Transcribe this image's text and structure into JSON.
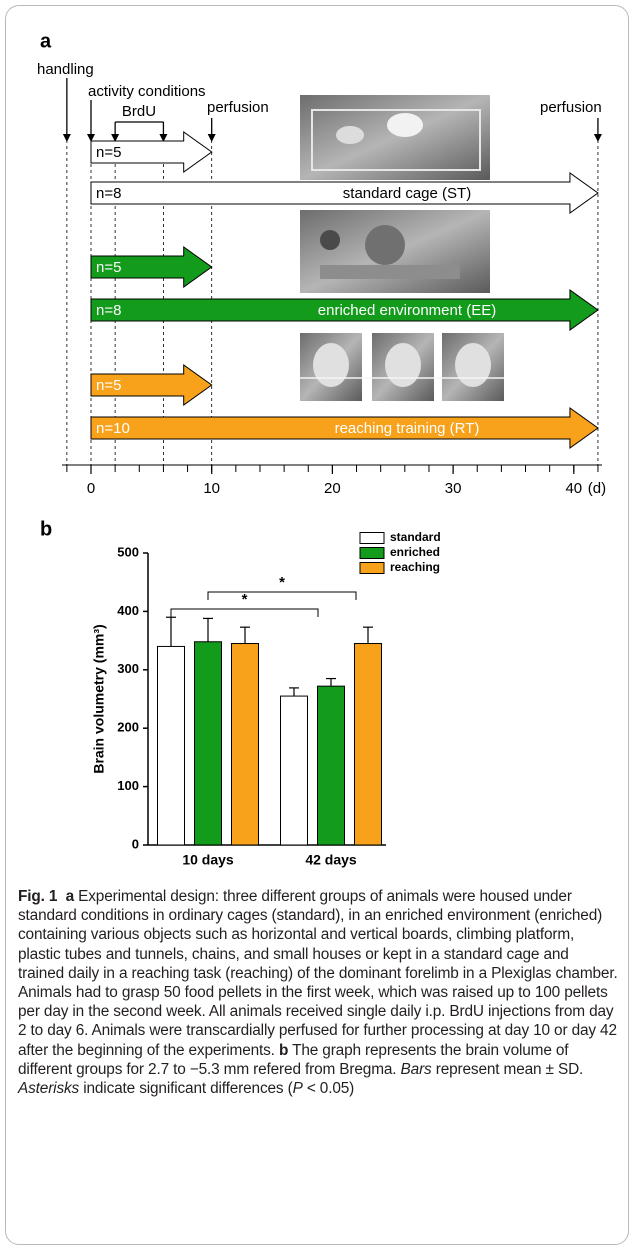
{
  "panel_a": {
    "label": "a",
    "events": [
      "handling",
      "activity conditions",
      "BrdU",
      "perfusion",
      "perfusion"
    ],
    "groups": [
      {
        "short_n": "n=5",
        "long_n": "n=8",
        "name": "standard cage (ST)",
        "color": "#ffffff"
      },
      {
        "short_n": "n=5",
        "long_n": "n=8",
        "name": "enriched environment (EE)",
        "color": "#139b1b"
      },
      {
        "short_n": "n=5",
        "long_n": "n=10",
        "name": "reaching training (RT)",
        "color": "#f8a21b"
      }
    ],
    "axis_ticks": [
      0,
      10,
      20,
      30,
      40
    ],
    "axis_unit": "(d)"
  },
  "panel_b_label": "b",
  "chart_data": {
    "type": "bar",
    "y_label": "Brain volumetry (mm³)",
    "categories": [
      "10 days",
      "42 days"
    ],
    "series": [
      {
        "name": "standard",
        "color": "#ffffff",
        "values": [
          340,
          255
        ],
        "errors": [
          50,
          14
        ]
      },
      {
        "name": "enriched",
        "color": "#139b1b",
        "values": [
          348,
          272
        ],
        "errors": [
          40,
          13
        ]
      },
      {
        "name": "reaching",
        "color": "#f8a21b",
        "values": [
          345,
          345
        ],
        "errors": [
          28,
          28
        ]
      }
    ],
    "ylim": [
      0,
      500
    ],
    "yticks": [
      0,
      100,
      200,
      300,
      400,
      500
    ],
    "significance": [
      "*",
      "*"
    ],
    "legend": "top-right"
  },
  "caption": {
    "figure_label": "Fig. 1",
    "panel_a_label": "a",
    "panel_a_text": "Experimental design: three different groups of animals were housed under standard conditions in ordinary cages (standard), in an enriched environment (enriched) containing various objects such as horizontal and vertical boards, climbing platform, plastic tubes and tunnels, chains, and small houses or kept in a standard cage and trained daily in a reaching task (reaching) of the dominant forelimb in a Plexiglas chamber. Animals had to grasp 50 food pellets in the first week, which was raised up to 100 pellets per day in the second week. All animals received single daily i.p. BrdU injections from day 2 to day 6. Animals were transcardially perfused for further processing at day 10 or day 42 after the beginning of the experiments.",
    "panel_b_label": "b",
    "panel_b_text": "The graph represents the brain volume of different groups for 2.7 to −5.3 mm refered from Bregma.",
    "bars_word": "Bars",
    "bars_text": "represent mean ± SD.",
    "asterisks_word": "Asterisks",
    "asterisks_text": "indicate significant differences (",
    "p_symbol": "P",
    "p_text": "< 0.05)"
  }
}
